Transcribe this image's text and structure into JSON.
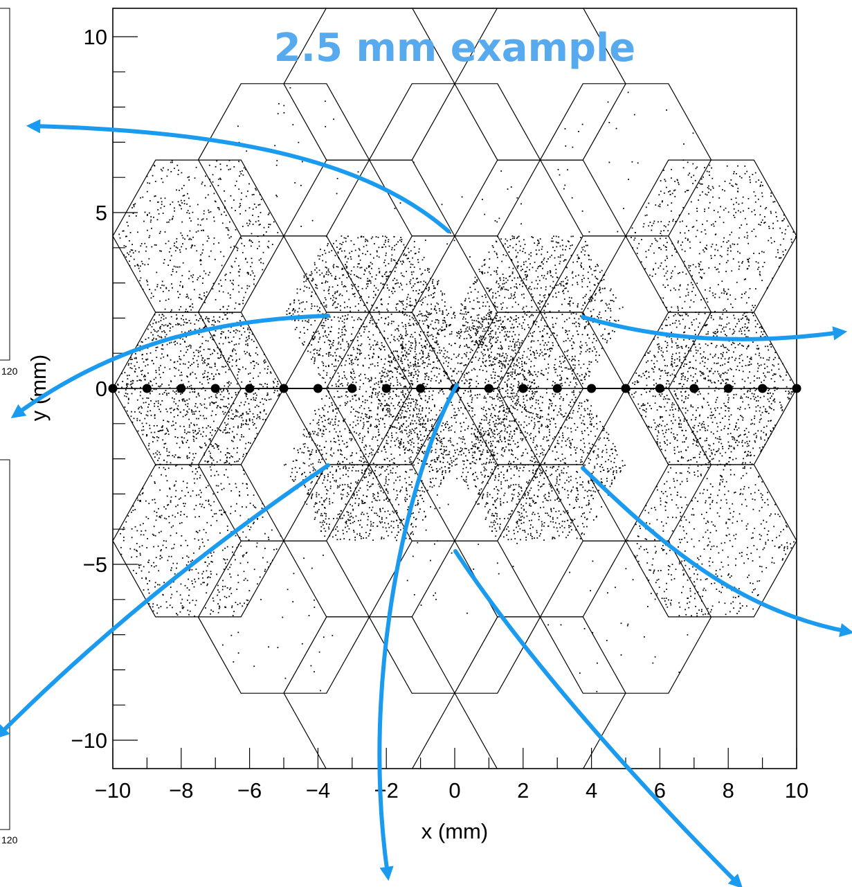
{
  "chart_data": {
    "type": "scatter",
    "title": "",
    "annotation": "2.5 mm example",
    "xlabel": "x (mm)",
    "ylabel": "y (mm)",
    "xlim": [
      -10,
      10
    ],
    "ylim": [
      -10.8,
      10.8
    ],
    "x_ticks": [
      -10,
      -8,
      -6,
      -4,
      -2,
      0,
      2,
      4,
      6,
      8,
      10
    ],
    "x_tick_labels": [
      "−10",
      "−8",
      "−6",
      "−4",
      "−2",
      "0",
      "2",
      "4",
      "6",
      "8",
      "10"
    ],
    "y_ticks": [
      -10,
      -5,
      0,
      5,
      10
    ],
    "y_tick_labels": [
      "−10",
      "−5",
      "0",
      "5",
      "10"
    ],
    "grid": false,
    "hexagon_cell_size_mm": 2.5,
    "hexagon_rows": [
      {
        "y": 8.66,
        "x_centers": [
          -2.5,
          2.5
        ]
      },
      {
        "y": 6.5,
        "x_centers": [
          -5,
          0,
          5
        ]
      },
      {
        "y": 4.33,
        "x_centers": [
          -7.5,
          -2.5,
          2.5,
          7.5
        ]
      },
      {
        "y": 2.17,
        "x_centers": [
          -5,
          0,
          5
        ]
      },
      {
        "y": 0,
        "x_centers": [
          -7.5,
          -2.5,
          2.5,
          7.5
        ]
      },
      {
        "y": -2.17,
        "x_centers": [
          -5,
          0,
          5
        ]
      },
      {
        "y": -4.33,
        "x_centers": [
          -7.5,
          -2.5,
          2.5,
          7.5
        ]
      },
      {
        "y": -6.5,
        "x_centers": [
          -5,
          0,
          5
        ]
      },
      {
        "y": -8.66,
        "x_centers": [
          -2.5,
          2.5
        ]
      }
    ],
    "scan_points": {
      "y": 0,
      "x": [
        -10,
        -9,
        -8,
        -7,
        -6,
        -5,
        -4,
        -3,
        -2,
        -1,
        0,
        1,
        2,
        3,
        4,
        5,
        6,
        7,
        8,
        9,
        10
      ]
    },
    "scan_line_segments": [
      [
        -10,
        -5
      ],
      [
        -5,
        -3
      ],
      [
        -2,
        1
      ],
      [
        2,
        5
      ],
      [
        5,
        10
      ]
    ],
    "hit_density_cells": [
      {
        "x": -7.5,
        "y": 0,
        "level": "high"
      },
      {
        "x": -2.5,
        "y": 2.17,
        "level": "high"
      },
      {
        "x": -2.5,
        "y": -2.17,
        "level": "high"
      },
      {
        "x": 0,
        "y": 0,
        "level": "high"
      },
      {
        "x": 2.5,
        "y": 2.17,
        "level": "high"
      },
      {
        "x": 2.5,
        "y": -2.17,
        "level": "high"
      },
      {
        "x": 7.5,
        "y": 0,
        "level": "high"
      },
      {
        "x": -7.5,
        "y": 4.33,
        "level": "medium"
      },
      {
        "x": -7.5,
        "y": -4.33,
        "level": "medium"
      },
      {
        "x": 7.5,
        "y": 4.33,
        "level": "medium"
      },
      {
        "x": 7.5,
        "y": -4.33,
        "level": "medium"
      },
      {
        "x": -5,
        "y": 6.5,
        "level": "low"
      },
      {
        "x": 0,
        "y": 4.33,
        "level": "low"
      },
      {
        "x": 0,
        "y": -4.33,
        "level": "low"
      },
      {
        "x": 5,
        "y": 6.5,
        "level": "low"
      },
      {
        "x": -5,
        "y": -6.5,
        "level": "low"
      },
      {
        "x": 5,
        "y": -6.5,
        "level": "low"
      },
      {
        "x": 0,
        "y": 8.66,
        "level": "none"
      },
      {
        "x": 0,
        "y": -8.66,
        "level": "none"
      }
    ],
    "side_panel_tick_label": "120",
    "colors": {
      "annotation": "#57aaee",
      "arrows": "#1a9bf0",
      "points": "#000000",
      "hexagon_edges": "#000000"
    }
  }
}
